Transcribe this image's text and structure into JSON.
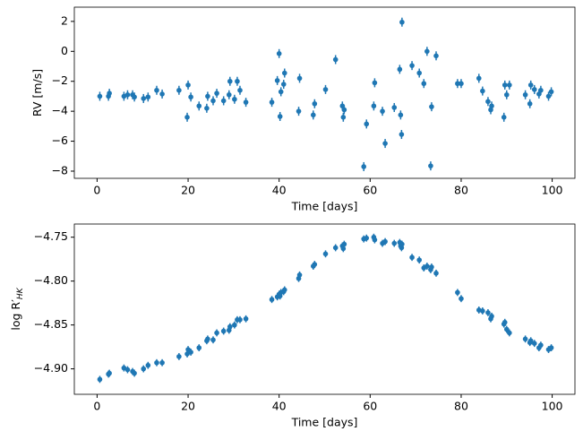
{
  "chart_data": [
    {
      "type": "scatter",
      "color": "#1f77b4",
      "xlabel": "Time [days]",
      "ylabel": "RV [m/s]",
      "xlim": [
        -5,
        105
      ],
      "ylim": [
        -8.48,
        2.95
      ],
      "xticks": [
        0,
        20,
        40,
        60,
        80,
        100
      ],
      "yticks": [
        {
          "value": -8,
          "label": "−8"
        },
        {
          "value": -6,
          "label": "−6"
        },
        {
          "value": -4,
          "label": "−4"
        },
        {
          "value": -2,
          "label": "−2"
        },
        0,
        2
      ],
      "yerr": 0.3,
      "x": [
        0.6,
        2.5,
        2.7,
        5.9,
        6.7,
        7.8,
        8.2,
        10.2,
        11.2,
        13.1,
        14.3,
        18,
        19.8,
        20,
        20.6,
        22.4,
        24.1,
        24.3,
        25.5,
        26.3,
        27.8,
        29,
        29.2,
        30.2,
        30.8,
        31.4,
        32.7,
        38.4,
        39.6,
        40,
        40.4,
        40.2,
        41,
        41.2,
        44.3,
        44.5,
        47.5,
        47.8,
        50.2,
        52.4,
        53.9,
        54.1,
        54.3,
        58.6,
        59.2,
        60.8,
        61,
        62.7,
        63.3,
        65.3,
        66.5,
        66.7,
        66.9,
        67,
        69.2,
        70.8,
        71.8,
        72.5,
        73.3,
        73.5,
        74.5,
        79.2,
        80,
        83.9,
        84.7,
        85.9,
        86.5,
        86.7,
        89.4,
        89.6,
        90,
        90.6,
        94.1,
        95.1,
        95.3,
        96.1,
        97.1,
        97.5,
        99.2,
        99.8
      ],
      "values": [
        -3.0,
        -3.0,
        -2.8,
        -3.0,
        -2.9,
        -2.9,
        -3.05,
        -3.15,
        -3.05,
        -2.6,
        -2.85,
        -2.6,
        -4.4,
        -2.25,
        -3.05,
        -3.65,
        -3.8,
        -3.0,
        -3.3,
        -2.8,
        -3.3,
        -2.9,
        -2.0,
        -3.2,
        -2.0,
        -2.6,
        -3.4,
        -3.4,
        -1.95,
        -0.15,
        -2.7,
        -4.35,
        -2.2,
        -1.45,
        -4.0,
        -1.8,
        -4.25,
        -3.5,
        -2.55,
        -0.55,
        -3.65,
        -4.4,
        -3.9,
        -7.7,
        -4.85,
        -3.65,
        -2.1,
        -4.0,
        -6.15,
        -3.75,
        -1.2,
        -4.25,
        -5.55,
        1.95,
        -0.95,
        -1.45,
        -2.15,
        0.0,
        -7.65,
        -3.7,
        -0.3,
        -2.15,
        -2.15,
        -1.8,
        -2.65,
        -3.35,
        -3.9,
        -3.65,
        -4.4,
        -2.25,
        -2.9,
        -2.25,
        -2.9,
        -3.5,
        -2.25,
        -2.55,
        -2.85,
        -2.6,
        -3.0,
        -2.7
      ]
    },
    {
      "type": "scatter",
      "color": "#1f77b4",
      "xlabel": "Time [days]",
      "ylabel": "log R′",
      "ylabel_subscript": "HK",
      "xlim": [
        -5,
        105
      ],
      "ylim": [
        -4.929,
        -4.735
      ],
      "xticks": [
        0,
        20,
        40,
        60,
        80,
        100
      ],
      "yticks": [
        {
          "value": -4.9,
          "label": "−4.90"
        },
        {
          "value": -4.85,
          "label": "−4.85"
        },
        {
          "value": -4.8,
          "label": "−4.80"
        },
        {
          "value": -4.75,
          "label": "−4.75"
        }
      ],
      "yerr": 0.004,
      "x": [
        0.6,
        2.5,
        2.7,
        5.9,
        6.7,
        7.8,
        8.2,
        10.2,
        11.2,
        13.1,
        14.3,
        18,
        19.8,
        20,
        20.6,
        22.4,
        24.1,
        24.3,
        25.5,
        26.3,
        27.8,
        29,
        29.2,
        30.2,
        30.8,
        31.4,
        32.7,
        38.4,
        39.6,
        40,
        40.4,
        40.2,
        41,
        41.2,
        44.3,
        44.5,
        47.5,
        47.8,
        50.2,
        52.4,
        53.9,
        54.1,
        54.3,
        58.6,
        59.2,
        60.8,
        61,
        62.7,
        63.3,
        65.3,
        66.5,
        66.7,
        66.9,
        67,
        69.2,
        70.8,
        71.8,
        72.5,
        73.3,
        73.5,
        74.5,
        79.2,
        80,
        83.9,
        84.7,
        85.9,
        86.5,
        86.7,
        89.4,
        89.6,
        90,
        90.6,
        94.1,
        95.1,
        95.3,
        96.1,
        97.1,
        97.5,
        99.2,
        99.8
      ],
      "values": [
        -4.912,
        -4.906,
        -4.905,
        -4.899,
        -4.901,
        -4.903,
        -4.905,
        -4.9,
        -4.896,
        -4.893,
        -4.893,
        -4.886,
        -4.883,
        -4.878,
        -4.881,
        -4.876,
        -4.868,
        -4.866,
        -4.867,
        -4.859,
        -4.857,
        -4.856,
        -4.852,
        -4.85,
        -4.844,
        -4.844,
        -4.843,
        -4.821,
        -4.818,
        -4.815,
        -4.813,
        -4.817,
        -4.812,
        -4.81,
        -4.797,
        -4.793,
        -4.783,
        -4.781,
        -4.769,
        -4.762,
        -4.76,
        -4.763,
        -4.758,
        -4.752,
        -4.751,
        -4.75,
        -4.753,
        -4.757,
        -4.755,
        -4.757,
        -4.756,
        -4.76,
        -4.762,
        -4.758,
        -4.773,
        -4.776,
        -4.785,
        -4.783,
        -4.787,
        -4.784,
        -4.791,
        -4.813,
        -4.82,
        -4.833,
        -4.834,
        -4.836,
        -4.843,
        -4.84,
        -4.849,
        -4.847,
        -4.855,
        -4.859,
        -4.866,
        -4.87,
        -4.868,
        -4.871,
        -4.876,
        -4.873,
        -4.878,
        -4.876
      ]
    }
  ]
}
